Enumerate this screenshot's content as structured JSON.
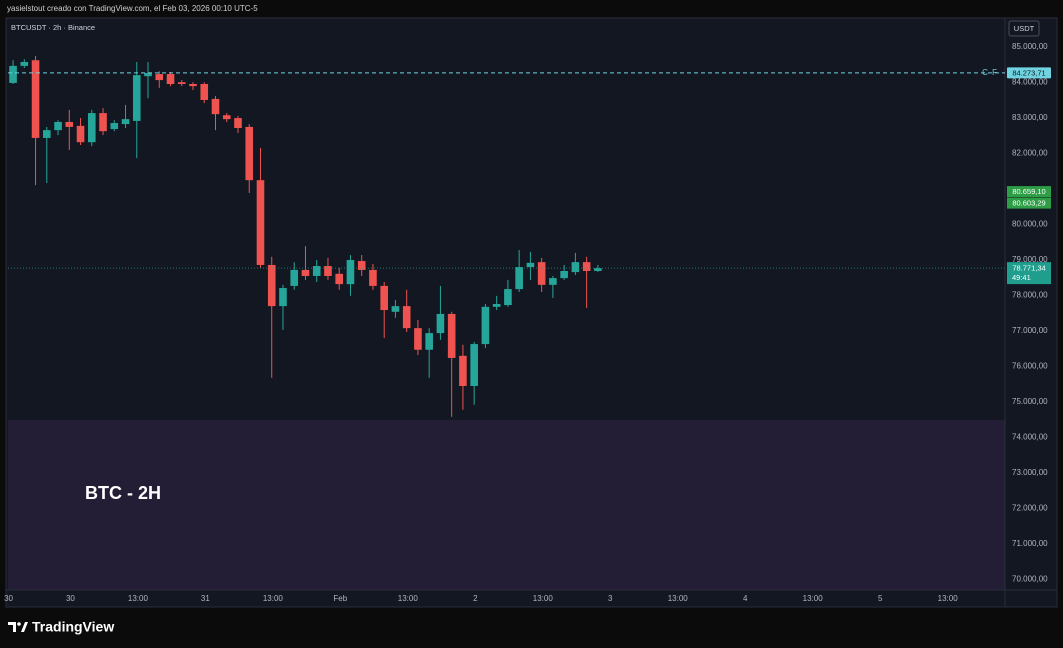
{
  "header": {
    "caption": "yasielstout creado con TradingView.com, el Feb 03, 2026 00:10 UTC-5"
  },
  "chart_data": {
    "type": "candlestick",
    "legend": "BTCUSDT · 2h · Binance",
    "annotation": "BTC - 2H",
    "currency": "USDT",
    "up_color": "#26a69a",
    "down_color": "#ef5350",
    "grid": false,
    "xlim": [
      -0.45,
      88.2
    ],
    "ylim": [
      69700,
      85820
    ],
    "xticks": [
      {
        "value": -0.4,
        "label": "30"
      },
      {
        "value": 5.1,
        "label": "30"
      },
      {
        "value": 11.1,
        "label": "13:00"
      },
      {
        "value": 17.1,
        "label": "31"
      },
      {
        "value": 23.1,
        "label": "13:00"
      },
      {
        "value": 29.1,
        "label": "Feb"
      },
      {
        "value": 35.1,
        "label": "13:00"
      },
      {
        "value": 41.1,
        "label": "2"
      },
      {
        "value": 47.1,
        "label": "13:00"
      },
      {
        "value": 53.1,
        "label": "3"
      },
      {
        "value": 59.1,
        "label": "13:00"
      },
      {
        "value": 65.1,
        "label": "4"
      },
      {
        "value": 71.1,
        "label": "13:00"
      },
      {
        "value": 77.1,
        "label": "5"
      },
      {
        "value": 83.1,
        "label": "13:00"
      }
    ],
    "yticks": [
      {
        "value": 85000,
        "label": "85.000,00"
      },
      {
        "value": 84000,
        "label": "84.000,00"
      },
      {
        "value": 83000,
        "label": "83.000,00"
      },
      {
        "value": 82000,
        "label": "82.000,00"
      },
      {
        "value": 80000,
        "label": "80.000,00"
      },
      {
        "value": 79000,
        "label": "79.000,00"
      },
      {
        "value": 78000,
        "label": "78.000,00"
      },
      {
        "value": 77000,
        "label": "77.000,00"
      },
      {
        "value": 76000,
        "label": "76.000,00"
      },
      {
        "value": 75000,
        "label": "75.000,00"
      },
      {
        "value": 74000,
        "label": "74.000,00"
      },
      {
        "value": 73000,
        "label": "73.000,00"
      },
      {
        "value": 72000,
        "label": "72.000,00"
      },
      {
        "value": 71000,
        "label": "71.000,00"
      },
      {
        "value": 70000,
        "label": "70.000,00"
      }
    ],
    "open": [
      83990,
      84470,
      84630,
      82440,
      82660,
      82890,
      82780,
      82320,
      83140,
      82690,
      82830,
      82920,
      84180,
      84240,
      84240,
      84010,
      83960,
      83960,
      83540,
      83080,
      83000,
      82750,
      81250,
      78860,
      77700,
      78270,
      78720,
      78550,
      78830,
      78610,
      78320,
      78970,
      78720,
      78270,
      77540,
      77700,
      77080,
      76470,
      76940,
      77480,
      76300,
      75450,
      76630,
      77680,
      77730,
      78180,
      78800,
      78940,
      78300,
      78490,
      78660,
      78940,
      78690
    ],
    "high": [
      84630,
      84660,
      84750,
      82750,
      82940,
      83230,
      83000,
      83230,
      83280,
      82940,
      83370,
      84580,
      84580,
      84320,
      84300,
      84070,
      84010,
      84010,
      83620,
      83140,
      83060,
      82830,
      82160,
      79090,
      78300,
      78940,
      79390,
      79000,
      79060,
      78780,
      79140,
      79140,
      78890,
      78380,
      77870,
      78160,
      77310,
      77080,
      78270,
      77540,
      76610,
      76690,
      77760,
      77990,
      78440,
      79280,
      79230,
      79060,
      78550,
      78860,
      79200,
      79090,
      78860
    ],
    "low": [
      83960,
      84410,
      81110,
      81170,
      82520,
      82100,
      82240,
      82210,
      82520,
      82630,
      82720,
      81870,
      83560,
      83850,
      83900,
      83900,
      83790,
      83420,
      82660,
      82890,
      82580,
      80890,
      78780,
      75680,
      77030,
      78160,
      78440,
      78380,
      78440,
      78160,
      77990,
      78550,
      78160,
      76800,
      77370,
      76970,
      76320,
      75680,
      76750,
      74580,
      74780,
      74920,
      76520,
      77590,
      77680,
      78100,
      78440,
      78100,
      77930,
      78440,
      78580,
      77650,
      78660
    ],
    "close": [
      84470,
      84580,
      82440,
      82660,
      82890,
      82750,
      82320,
      83140,
      82630,
      82860,
      82970,
      84210,
      84270,
      84070,
      83960,
      83960,
      83900,
      83510,
      83110,
      82970,
      82720,
      81250,
      78860,
      77700,
      78210,
      78720,
      78550,
      78830,
      78550,
      78320,
      79000,
      78720,
      78270,
      77590,
      77700,
      77080,
      76470,
      76940,
      77480,
      76240,
      75450,
      76630,
      77680,
      77760,
      78180,
      78800,
      78920,
      78300,
      78490,
      78690,
      78940,
      78690,
      78771.34
    ],
    "lines": [
      {
        "value": 84273.71,
        "label": "84.273,71",
        "tag": "C F",
        "color": "#6fd3e0"
      }
    ],
    "price_labels": [
      {
        "value": 80659.1,
        "label": "80.659,10",
        "color": "#2e9e46"
      },
      {
        "value": 80603.29,
        "label": "80.603,29",
        "color": "#2e9e46"
      }
    ],
    "last_price": {
      "value": 78771.34,
      "label": "78.771,34",
      "countdown": "49:41",
      "color": "#1f9e8e"
    }
  },
  "footer": {
    "brand": "TradingView"
  }
}
